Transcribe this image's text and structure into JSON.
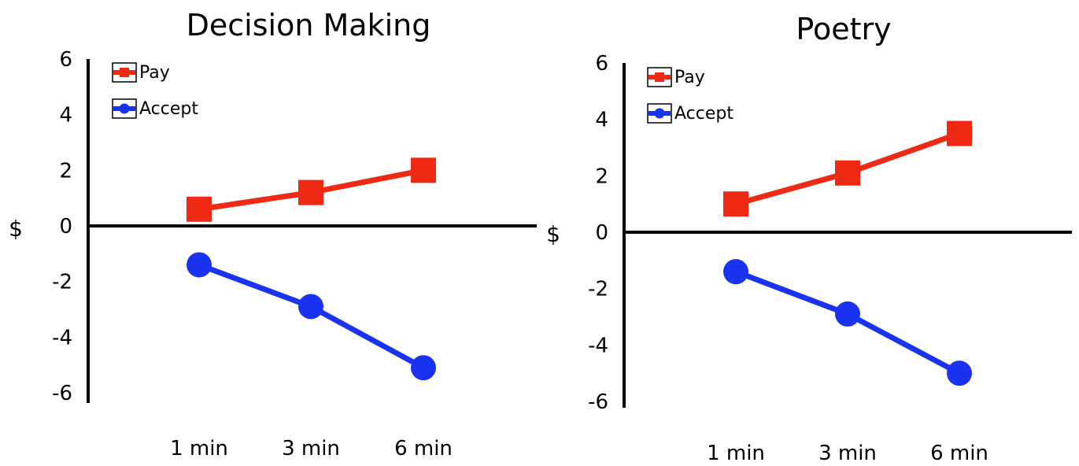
{
  "colors": {
    "pay": "#ee2a14",
    "accept": "#1a33f0",
    "axis": "#000000"
  },
  "chart_data": [
    {
      "type": "line",
      "title": "Decision Making",
      "ylabel": "$",
      "ylim": [
        -6,
        6
      ],
      "yticks": [
        "6",
        "4",
        "2",
        "0",
        "-2",
        "-4",
        "-6"
      ],
      "categories": [
        "1 min",
        "3 min",
        "6 min"
      ],
      "legend_position": "top-left",
      "series": [
        {
          "name": "Pay",
          "marker": "square",
          "color": "#ee2a14",
          "values": [
            0.6,
            1.2,
            2.0
          ]
        },
        {
          "name": "Accept",
          "marker": "circle",
          "color": "#1a33f0",
          "values": [
            -1.4,
            -2.9,
            -5.1
          ]
        }
      ]
    },
    {
      "type": "line",
      "title": "Poetry",
      "ylabel": "$",
      "ylim": [
        -6,
        6
      ],
      "yticks": [
        "6",
        "4",
        "2",
        "0",
        "-2",
        "-4",
        "-6"
      ],
      "categories": [
        "1 min",
        "3 min",
        "6 min"
      ],
      "legend_position": "top-left",
      "series": [
        {
          "name": "Pay",
          "marker": "square",
          "color": "#ee2a14",
          "values": [
            1.0,
            2.1,
            3.5
          ]
        },
        {
          "name": "Accept",
          "marker": "circle",
          "color": "#1a33f0",
          "values": [
            -1.4,
            -2.9,
            -5.0
          ]
        }
      ]
    }
  ]
}
